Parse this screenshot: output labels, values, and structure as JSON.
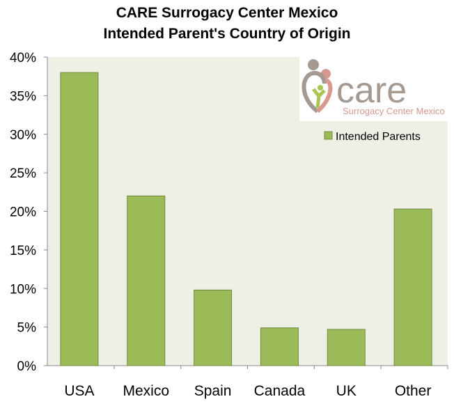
{
  "chart_data": {
    "type": "bar",
    "title": "CARE Surrogacy Center Mexico",
    "subtitle": "Intended Parent's Country of Origin",
    "categories": [
      "USA",
      "Mexico",
      "Spain",
      "Canada",
      "UK",
      "Other"
    ],
    "series": [
      {
        "name": "Intended Parents",
        "values": [
          38,
          22,
          9.8,
          4.9,
          4.7,
          20.3
        ]
      }
    ],
    "ylim": [
      0,
      40
    ],
    "yticks": [
      0,
      5,
      10,
      15,
      20,
      25,
      30,
      35,
      40
    ],
    "ytick_labels": [
      "0%",
      "5%",
      "10%",
      "15%",
      "20%",
      "25%",
      "30%",
      "35%",
      "40%"
    ],
    "xlabel": "",
    "ylabel": "",
    "grid": false,
    "legend": "top-right",
    "colors": {
      "bar": "#9bbb59",
      "bar_border": "#71893f",
      "plot_bg": "#eef0e6"
    }
  },
  "logo": {
    "name": "care",
    "tagline": "Surrogacy Center Mexico"
  }
}
